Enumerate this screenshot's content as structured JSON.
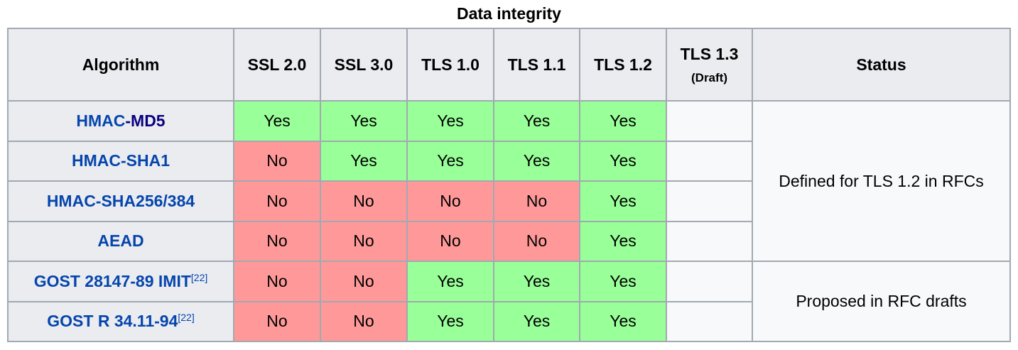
{
  "caption": "Data integrity",
  "headers": {
    "algorithm": "Algorithm",
    "ssl20": "SSL 2.0",
    "ssl30": "SSL 3.0",
    "tls10": "TLS 1.0",
    "tls11": "TLS 1.1",
    "tls12": "TLS 1.2",
    "tls13": "TLS 1.3",
    "tls13_note": "(Draft)",
    "status": "Status"
  },
  "rows": [
    {
      "name_a": "HMAC",
      "name_b": "-MD5",
      "sup": "",
      "cells": [
        "Yes",
        "Yes",
        "Yes",
        "Yes",
        "Yes",
        ""
      ]
    },
    {
      "name_a": "HMAC-SHA1",
      "name_b": "",
      "sup": "",
      "cells": [
        "No",
        "Yes",
        "Yes",
        "Yes",
        "Yes",
        ""
      ]
    },
    {
      "name_a": "HMAC-SHA256/384",
      "name_b": "",
      "sup": "",
      "cells": [
        "No",
        "No",
        "No",
        "No",
        "Yes",
        ""
      ]
    },
    {
      "name_a": "AEAD",
      "name_b": "",
      "sup": "",
      "cells": [
        "No",
        "No",
        "No",
        "No",
        "Yes",
        ""
      ]
    },
    {
      "name_a": "GOST 28147-89 IMIT",
      "name_b": "",
      "sup": "[22]",
      "cells": [
        "No",
        "No",
        "Yes",
        "Yes",
        "Yes",
        ""
      ]
    },
    {
      "name_a": "GOST R 34.11-94",
      "name_b": "",
      "sup": "[22]",
      "cells": [
        "No",
        "No",
        "Yes",
        "Yes",
        "Yes",
        ""
      ]
    }
  ],
  "status_groups": [
    "Defined for TLS 1.2 in RFCs",
    "Proposed in RFC drafts"
  ],
  "colors": {
    "yes": "#99ff99",
    "no": "#ff9999",
    "header_bg": "#eaecf0",
    "link": "#0645ad",
    "visited_link": "#0b0080",
    "border": "#a2a9b1"
  }
}
